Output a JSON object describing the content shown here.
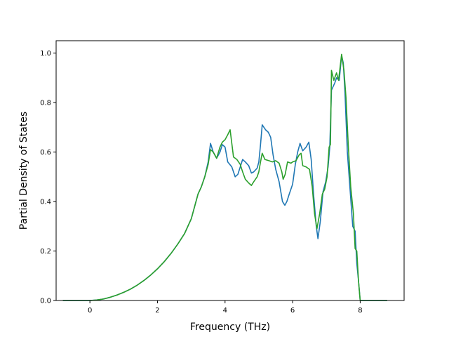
{
  "chart_data": {
    "type": "line",
    "xlabel": "Frequency (THz)",
    "ylabel": "Partial Density of States",
    "xlim": [
      -1.0,
      9.3
    ],
    "ylim": [
      0.0,
      1.05
    ],
    "xticks": [
      0,
      2,
      4,
      6,
      8
    ],
    "xtick_labels": [
      "0",
      "2",
      "4",
      "6",
      "8"
    ],
    "yticks": [
      0.0,
      0.2,
      0.4,
      0.6,
      0.8,
      1.0
    ],
    "ytick_labels": [
      "0.0",
      "0.2",
      "0.4",
      "0.6",
      "0.8",
      "1.0"
    ],
    "grid": false,
    "series": [
      {
        "color": "#1f77b4",
        "points": [
          [
            -0.8,
            0.0
          ],
          [
            0.0,
            0.0
          ],
          [
            0.2,
            0.002
          ],
          [
            0.4,
            0.006
          ],
          [
            0.6,
            0.013
          ],
          [
            0.8,
            0.022
          ],
          [
            1.0,
            0.033
          ],
          [
            1.2,
            0.046
          ],
          [
            1.4,
            0.062
          ],
          [
            1.6,
            0.081
          ],
          [
            1.8,
            0.103
          ],
          [
            2.0,
            0.128
          ],
          [
            2.2,
            0.157
          ],
          [
            2.4,
            0.19
          ],
          [
            2.6,
            0.228
          ],
          [
            2.8,
            0.27
          ],
          [
            3.0,
            0.33
          ],
          [
            3.1,
            0.38
          ],
          [
            3.2,
            0.43
          ],
          [
            3.3,
            0.46
          ],
          [
            3.4,
            0.5
          ],
          [
            3.5,
            0.56
          ],
          [
            3.57,
            0.635
          ],
          [
            3.65,
            0.6
          ],
          [
            3.75,
            0.575
          ],
          [
            3.85,
            0.6
          ],
          [
            3.92,
            0.63
          ],
          [
            4.0,
            0.62
          ],
          [
            4.08,
            0.56
          ],
          [
            4.2,
            0.54
          ],
          [
            4.3,
            0.5
          ],
          [
            4.38,
            0.51
          ],
          [
            4.45,
            0.54
          ],
          [
            4.52,
            0.57
          ],
          [
            4.6,
            0.56
          ],
          [
            4.7,
            0.545
          ],
          [
            4.78,
            0.515
          ],
          [
            4.85,
            0.52
          ],
          [
            4.95,
            0.535
          ],
          [
            5.0,
            0.56
          ],
          [
            5.05,
            0.63
          ],
          [
            5.1,
            0.71
          ],
          [
            5.2,
            0.69
          ],
          [
            5.28,
            0.68
          ],
          [
            5.35,
            0.66
          ],
          [
            5.42,
            0.59
          ],
          [
            5.5,
            0.53
          ],
          [
            5.6,
            0.48
          ],
          [
            5.7,
            0.4
          ],
          [
            5.77,
            0.385
          ],
          [
            5.83,
            0.4
          ],
          [
            5.9,
            0.43
          ],
          [
            6.0,
            0.47
          ],
          [
            6.08,
            0.55
          ],
          [
            6.15,
            0.6
          ],
          [
            6.22,
            0.635
          ],
          [
            6.3,
            0.605
          ],
          [
            6.4,
            0.62
          ],
          [
            6.48,
            0.64
          ],
          [
            6.55,
            0.57
          ],
          [
            6.62,
            0.43
          ],
          [
            6.7,
            0.3
          ],
          [
            6.75,
            0.25
          ],
          [
            6.82,
            0.32
          ],
          [
            6.9,
            0.44
          ],
          [
            6.98,
            0.48
          ],
          [
            7.05,
            0.54
          ],
          [
            7.1,
            0.62
          ],
          [
            7.15,
            0.85
          ],
          [
            7.25,
            0.88
          ],
          [
            7.3,
            0.9
          ],
          [
            7.38,
            0.89
          ],
          [
            7.45,
            0.99
          ],
          [
            7.5,
            0.96
          ],
          [
            7.55,
            0.84
          ],
          [
            7.62,
            0.6
          ],
          [
            7.7,
            0.45
          ],
          [
            7.78,
            0.3
          ],
          [
            7.85,
            0.28
          ],
          [
            7.9,
            0.15
          ],
          [
            7.95,
            0.08
          ],
          [
            8.0,
            0.0
          ],
          [
            8.8,
            0.0
          ]
        ]
      },
      {
        "color": "#2ca02c",
        "points": [
          [
            -0.8,
            0.0
          ],
          [
            0.0,
            0.0
          ],
          [
            0.2,
            0.002
          ],
          [
            0.4,
            0.006
          ],
          [
            0.6,
            0.013
          ],
          [
            0.8,
            0.022
          ],
          [
            1.0,
            0.033
          ],
          [
            1.2,
            0.046
          ],
          [
            1.4,
            0.062
          ],
          [
            1.6,
            0.081
          ],
          [
            1.8,
            0.103
          ],
          [
            2.0,
            0.128
          ],
          [
            2.2,
            0.157
          ],
          [
            2.4,
            0.19
          ],
          [
            2.6,
            0.228
          ],
          [
            2.8,
            0.27
          ],
          [
            3.0,
            0.33
          ],
          [
            3.1,
            0.38
          ],
          [
            3.2,
            0.43
          ],
          [
            3.3,
            0.46
          ],
          [
            3.4,
            0.5
          ],
          [
            3.5,
            0.55
          ],
          [
            3.57,
            0.61
          ],
          [
            3.65,
            0.6
          ],
          [
            3.75,
            0.575
          ],
          [
            3.85,
            0.62
          ],
          [
            3.92,
            0.64
          ],
          [
            4.0,
            0.65
          ],
          [
            4.08,
            0.67
          ],
          [
            4.15,
            0.69
          ],
          [
            4.25,
            0.58
          ],
          [
            4.35,
            0.57
          ],
          [
            4.45,
            0.55
          ],
          [
            4.52,
            0.52
          ],
          [
            4.6,
            0.49
          ],
          [
            4.7,
            0.475
          ],
          [
            4.78,
            0.465
          ],
          [
            4.85,
            0.48
          ],
          [
            4.95,
            0.5
          ],
          [
            5.0,
            0.52
          ],
          [
            5.05,
            0.56
          ],
          [
            5.1,
            0.595
          ],
          [
            5.18,
            0.57
          ],
          [
            5.3,
            0.565
          ],
          [
            5.4,
            0.56
          ],
          [
            5.5,
            0.565
          ],
          [
            5.6,
            0.555
          ],
          [
            5.68,
            0.52
          ],
          [
            5.72,
            0.49
          ],
          [
            5.78,
            0.51
          ],
          [
            5.85,
            0.56
          ],
          [
            5.95,
            0.555
          ],
          [
            6.0,
            0.56
          ],
          [
            6.1,
            0.565
          ],
          [
            6.2,
            0.59
          ],
          [
            6.25,
            0.595
          ],
          [
            6.3,
            0.545
          ],
          [
            6.4,
            0.54
          ],
          [
            6.5,
            0.53
          ],
          [
            6.58,
            0.46
          ],
          [
            6.65,
            0.35
          ],
          [
            6.72,
            0.29
          ],
          [
            6.8,
            0.35
          ],
          [
            6.88,
            0.43
          ],
          [
            6.95,
            0.45
          ],
          [
            7.02,
            0.5
          ],
          [
            7.08,
            0.62
          ],
          [
            7.12,
            0.63
          ],
          [
            7.15,
            0.93
          ],
          [
            7.22,
            0.89
          ],
          [
            7.3,
            0.92
          ],
          [
            7.36,
            0.89
          ],
          [
            7.45,
            0.995
          ],
          [
            7.52,
            0.93
          ],
          [
            7.58,
            0.82
          ],
          [
            7.65,
            0.62
          ],
          [
            7.72,
            0.46
          ],
          [
            7.8,
            0.35
          ],
          [
            7.85,
            0.21
          ],
          [
            7.9,
            0.2
          ],
          [
            7.95,
            0.08
          ],
          [
            8.0,
            0.0
          ],
          [
            8.8,
            0.0
          ]
        ]
      }
    ]
  }
}
